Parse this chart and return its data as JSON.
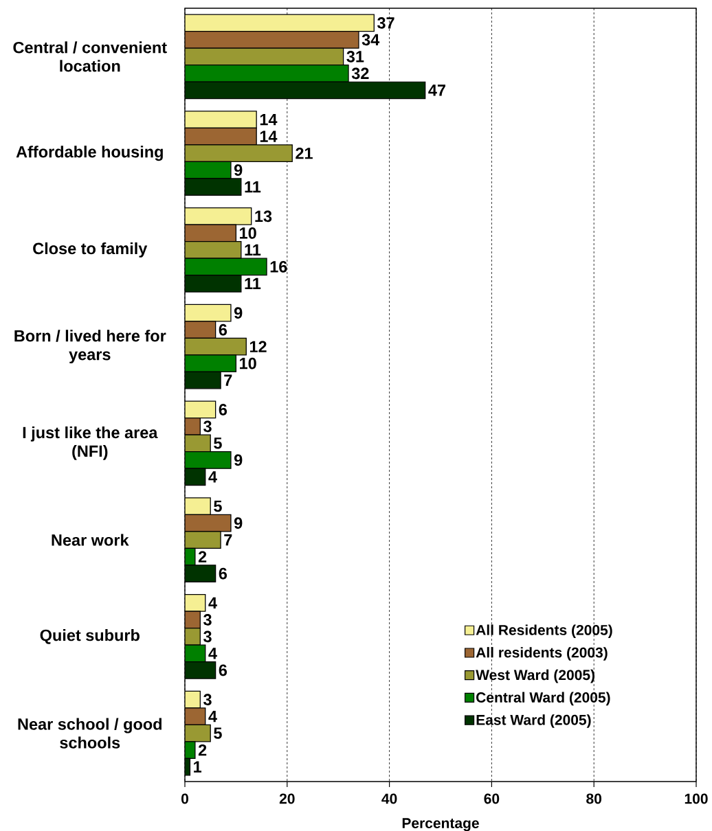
{
  "chart_data": {
    "type": "bar",
    "orientation": "horizontal",
    "xlabel": "Percentage",
    "categories": [
      "Central / convenient location",
      "Affordable housing",
      "Close to family",
      "Born / lived here for years",
      "I just like the area (NFI)",
      "Near work",
      "Quiet suburb",
      "Near school / good schools"
    ],
    "series": [
      {
        "name": "All Residents (2005)",
        "color": "#f5ef93",
        "values": [
          37,
          14,
          13,
          9,
          6,
          5,
          4,
          3
        ]
      },
      {
        "name": "All residents (2003)",
        "color": "#9c6633",
        "values": [
          34,
          14,
          10,
          6,
          3,
          9,
          3,
          4
        ]
      },
      {
        "name": "West Ward (2005)",
        "color": "#999933",
        "values": [
          31,
          21,
          11,
          12,
          5,
          7,
          3,
          5
        ]
      },
      {
        "name": "Central Ward (2005)",
        "color": "#008000",
        "values": [
          32,
          9,
          16,
          10,
          9,
          2,
          4,
          2
        ]
      },
      {
        "name": "East Ward (2005)",
        "color": "#003300",
        "values": [
          47,
          11,
          11,
          7,
          4,
          6,
          6,
          1
        ]
      }
    ],
    "xlim": [
      0,
      100
    ],
    "xticks": [
      0,
      20,
      40,
      60,
      80,
      100
    ],
    "grid": "x",
    "legend": "bottom right",
    "data_labels": true
  }
}
